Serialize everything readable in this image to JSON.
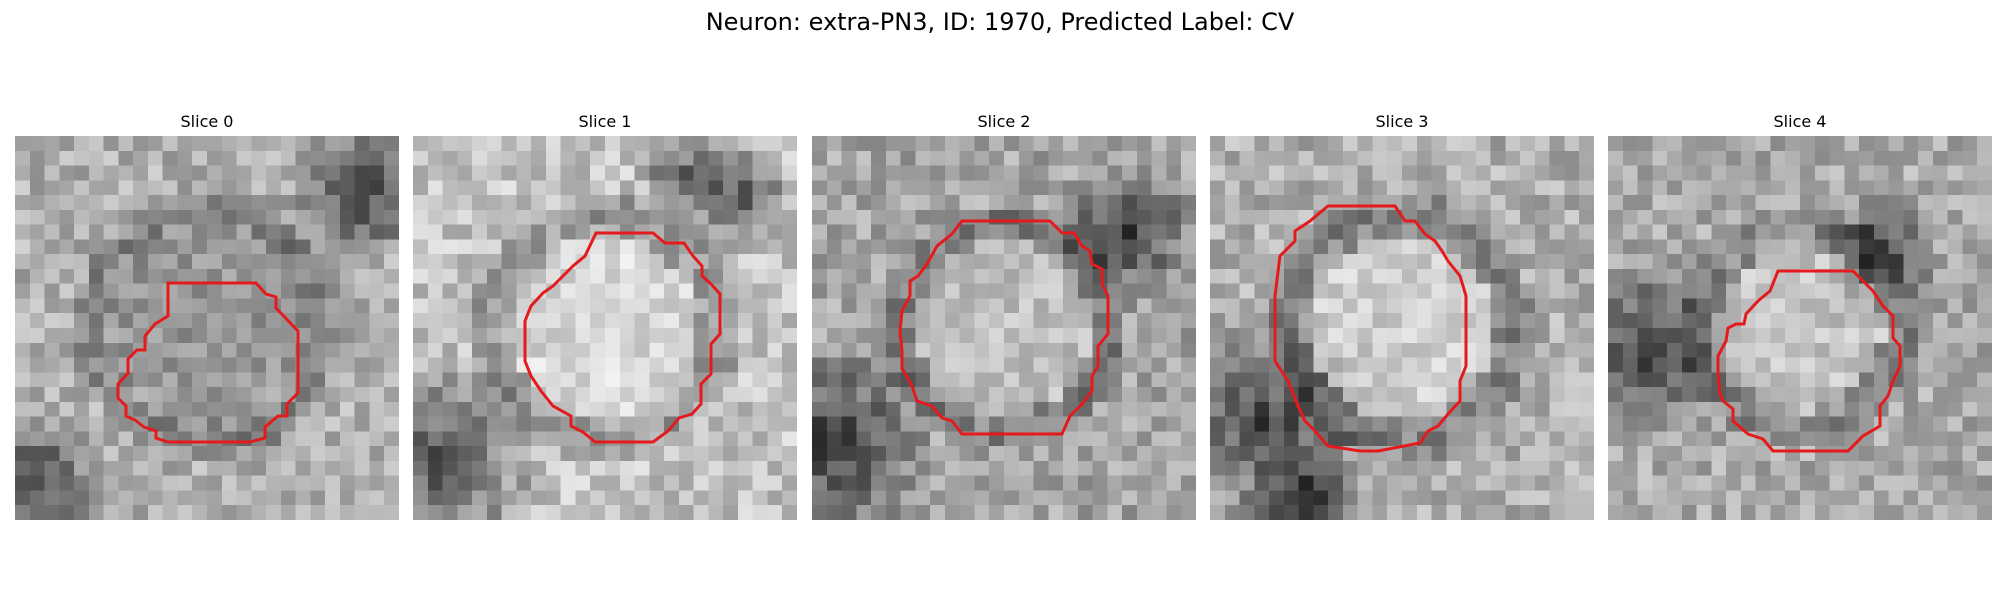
{
  "figure": {
    "title": "Neuron: extra-PN3, ID: 1970, Predicted Label: CV",
    "contour_color": "#e41a1c"
  },
  "panels": [
    {
      "title": "Slice 0"
    },
    {
      "title": "Slice 1"
    },
    {
      "title": "Slice 2"
    },
    {
      "title": "Slice 3"
    },
    {
      "title": "Slice 4"
    }
  ]
}
